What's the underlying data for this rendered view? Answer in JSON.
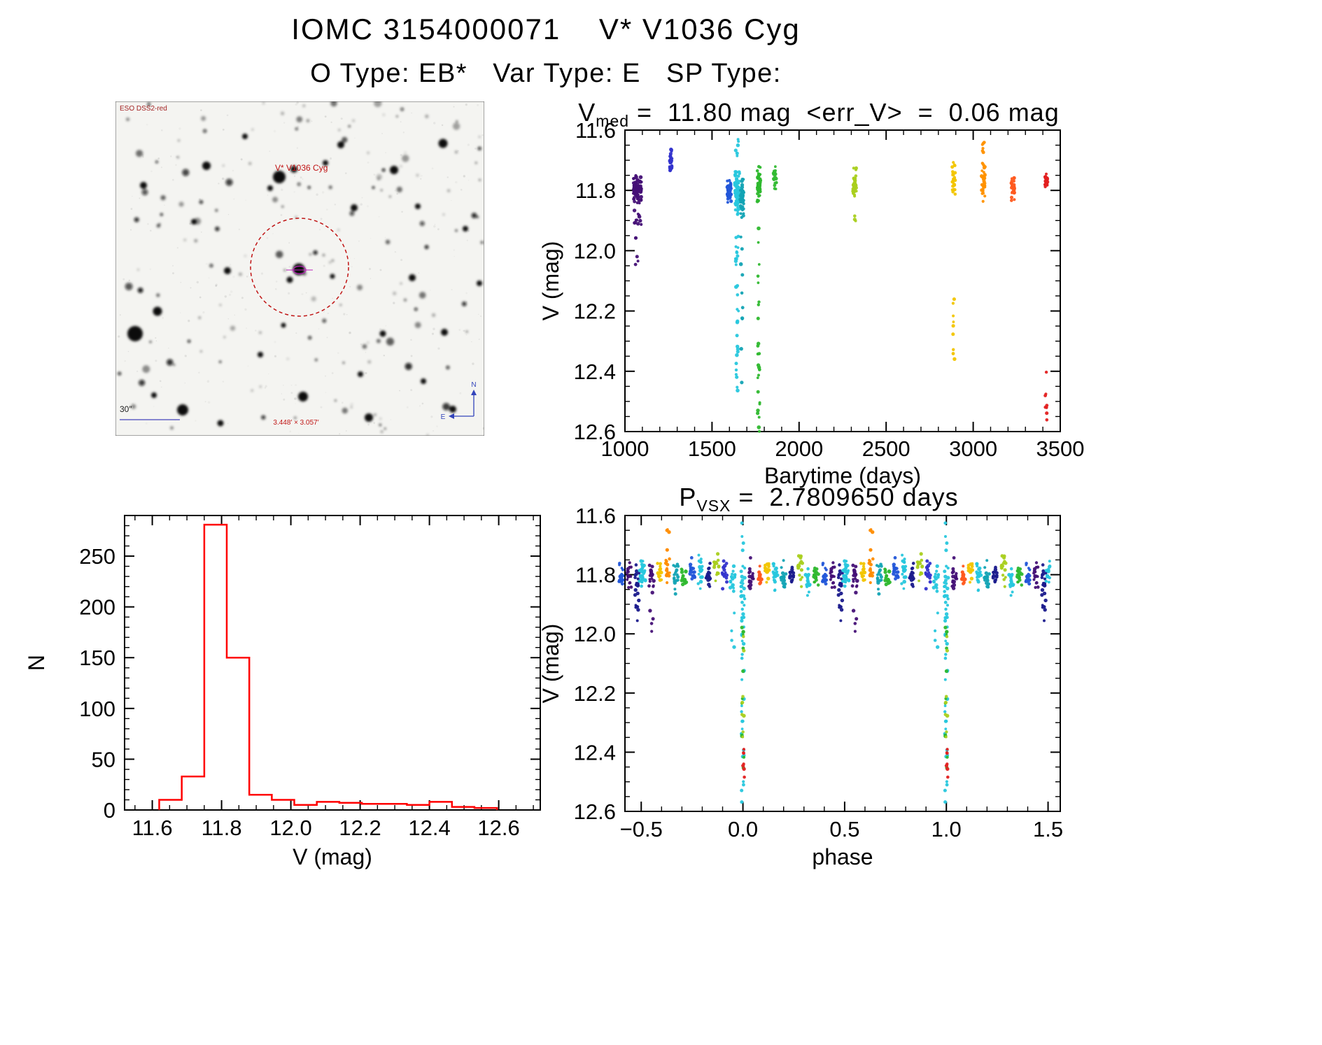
{
  "page": {
    "title": "IOMC 3154000071    V* V1036 Cyg",
    "subtitle": "O Type: EB*   Var Type: E   SP Type:"
  },
  "finder": {
    "survey_label": "ESO DSS2-red",
    "target_label": "V* V1036 Cyg",
    "scale_bar_label": "30″",
    "fov_label": "3.448′ × 3.057′",
    "compass_north": "N",
    "compass_east": "E"
  },
  "chart_data": [
    {
      "id": "lightcurve-barytime",
      "type": "scatter",
      "title_var": "V",
      "title_sub": "med",
      "title_rest": " =  11.80 mag  <err_V>  =  0.06 mag",
      "v_med_mag": "11.80",
      "err_v_mag": "0.06",
      "xlabel": "Barytime (days)",
      "ylabel": "V (mag)",
      "xlim": [
        1000,
        3500
      ],
      "ylim_top": 11.6,
      "ylim_bottom": 12.6,
      "xticks": {
        "values": [
          1000,
          1500,
          2000,
          2500,
          3000,
          3500
        ],
        "labels": [
          "1000",
          "1500",
          "2000",
          "2500",
          "3000",
          "3500"
        ],
        "minor": 100
      },
      "yticks": {
        "values": [
          11.6,
          11.8,
          12.0,
          12.2,
          12.4,
          12.6
        ],
        "labels": [
          "11.6",
          "11.8",
          "12.0",
          "12.2",
          "12.4",
          "12.6"
        ],
        "minor": 0.05
      },
      "clusters": [
        {
          "x": 1072,
          "dx": 24,
          "color": "#451076",
          "bands": [
            [
              11.8,
              0.04,
              85
            ],
            [
              11.9,
              0.03,
              10
            ]
          ],
          "tails": [
            [
              11.95,
              12.06,
              5
            ]
          ]
        },
        {
          "x": 1263,
          "dx": 7,
          "color": "#3333cc",
          "bands": [
            [
              11.7,
              0.035,
              26
            ]
          ]
        },
        {
          "x": 1598,
          "dx": 12,
          "color": "#2256d9",
          "bands": [
            [
              11.8,
              0.035,
              40
            ]
          ]
        },
        {
          "x": 1645,
          "dx": 14,
          "color": "#27c7dd",
          "bands": [
            [
              11.8,
              0.06,
              80
            ]
          ],
          "tails": [
            [
              11.92,
              12.52,
              30
            ],
            [
              11.63,
              11.7,
              6
            ]
          ]
        },
        {
          "x": 1672,
          "dx": 10,
          "color": "#12a3b4",
          "bands": [
            [
              11.82,
              0.05,
              40
            ]
          ],
          "tails": [
            [
              11.95,
              12.45,
              10
            ]
          ]
        },
        {
          "x": 1768,
          "dx": 9,
          "color": "#2eb82e",
          "bands": [
            [
              11.78,
              0.045,
              45
            ]
          ],
          "tails": [
            [
              11.9,
              12.6,
              26
            ]
          ]
        },
        {
          "x": 1862,
          "dx": 10,
          "color": "#33bb33",
          "bands": [
            [
              11.76,
              0.03,
              24
            ]
          ]
        },
        {
          "x": 2320,
          "dx": 10,
          "color": "#a9cf1e",
          "bands": [
            [
              11.78,
              0.05,
              34
            ]
          ],
          "tails": [
            [
              11.88,
              11.92,
              3
            ]
          ]
        },
        {
          "x": 2888,
          "dx": 9,
          "color": "#f2c500",
          "bands": [
            [
              11.76,
              0.04,
              26
            ]
          ],
          "tails": [
            [
              12.15,
              12.4,
              10
            ]
          ]
        },
        {
          "x": 3058,
          "dx": 10,
          "color": "#ff9100",
          "bands": [
            [
              11.76,
              0.05,
              36
            ],
            [
              11.66,
              0.02,
              5
            ]
          ]
        },
        {
          "x": 3228,
          "dx": 9,
          "color": "#ff5a1f",
          "bands": [
            [
              11.79,
              0.035,
              30
            ]
          ]
        },
        {
          "x": 3418,
          "dx": 8,
          "color": "#e32020",
          "bands": [
            [
              11.77,
              0.02,
              24
            ]
          ],
          "tails": [
            [
              12.4,
              12.58,
              9
            ]
          ]
        }
      ]
    },
    {
      "id": "v-histogram",
      "type": "histogram",
      "color": "#ff0000",
      "xlabel": "V (mag)",
      "ylabel": "N",
      "xlim": [
        11.52,
        12.72
      ],
      "ylim_top": 290,
      "ylim_bottom": 0,
      "xticks": {
        "values": [
          11.6,
          11.8,
          12.0,
          12.2,
          12.4,
          12.6
        ],
        "labels": [
          "11.6",
          "11.8",
          "12.0",
          "12.2",
          "12.4",
          "12.6"
        ],
        "minor": 0.05
      },
      "yticks": {
        "values": [
          0,
          50,
          100,
          150,
          200,
          250
        ],
        "labels": [
          "0",
          "50",
          "100",
          "150",
          "200",
          "250"
        ],
        "minor": 10
      },
      "bin_edges": [
        11.62,
        11.685,
        11.75,
        11.815,
        11.88,
        11.945,
        12.01,
        12.075,
        12.14,
        12.205,
        12.27,
        12.335,
        12.4,
        12.465,
        12.53,
        12.595
      ],
      "counts": [
        10,
        33,
        281,
        150,
        15,
        10,
        5,
        8,
        7,
        6,
        6,
        5,
        8,
        3,
        2
      ]
    },
    {
      "id": "phase-folded-lightcurve",
      "type": "scatter",
      "title_var": "P",
      "title_sub": "VSX",
      "title_rest": " =  2.7809650 days",
      "period_days": "2.7809650",
      "xlabel": "phase",
      "ylabel": "V (mag)",
      "xlim": [
        -0.58,
        1.56
      ],
      "ylim_top": 11.6,
      "ylim_bottom": 12.6,
      "mirror_period": 1.0,
      "xticks": {
        "values": [
          -0.5,
          0.0,
          0.5,
          1.0,
          1.5
        ],
        "labels": [
          "−0.5",
          "0.0",
          "0.5",
          "1.0",
          "1.5"
        ],
        "minor": 0.1
      },
      "yticks": {
        "values": [
          11.6,
          11.8,
          12.0,
          12.2,
          12.4,
          12.6
        ],
        "labels": [
          "11.6",
          "11.8",
          "12.0",
          "12.2",
          "12.4",
          "12.6"
        ],
        "minor": 0.05
      },
      "clusters": [
        {
          "x": -0.49,
          "dx": 0.012,
          "color": "#27c7dd",
          "bands": [
            [
              11.8,
              0.04,
              20
            ]
          ]
        },
        {
          "x": -0.45,
          "dx": 0.012,
          "color": "#451076",
          "bands": [
            [
              11.81,
              0.035,
              18
            ]
          ],
          "tails": [
            [
              11.92,
              12.03,
              4
            ]
          ]
        },
        {
          "x": -0.41,
          "dx": 0.012,
          "color": "#f2c500",
          "bands": [
            [
              11.79,
              0.03,
              14
            ]
          ]
        },
        {
          "x": -0.37,
          "dx": 0.01,
          "color": "#ff8c00",
          "bands": [
            [
              11.76,
              0.05,
              16
            ]
          ],
          "tails": [
            [
              11.64,
              11.68,
              3
            ]
          ]
        },
        {
          "x": -0.33,
          "dx": 0.012,
          "color": "#12a3b4",
          "bands": [
            [
              11.8,
              0.04,
              18
            ]
          ]
        },
        {
          "x": -0.29,
          "dx": 0.012,
          "color": "#2eb82e",
          "bands": [
            [
              11.82,
              0.04,
              16
            ]
          ]
        },
        {
          "x": -0.25,
          "dx": 0.012,
          "color": "#2256d9",
          "bands": [
            [
              11.79,
              0.035,
              18
            ]
          ]
        },
        {
          "x": -0.21,
          "dx": 0.012,
          "color": "#27c7dd",
          "bands": [
            [
              11.8,
              0.05,
              20
            ]
          ]
        },
        {
          "x": -0.17,
          "dx": 0.012,
          "color": "#1a1a8c",
          "bands": [
            [
              11.8,
              0.035,
              16
            ]
          ]
        },
        {
          "x": -0.13,
          "dx": 0.012,
          "color": "#a9cf1e",
          "bands": [
            [
              11.78,
              0.04,
              16
            ]
          ]
        },
        {
          "x": -0.09,
          "dx": 0.012,
          "color": "#3333cc",
          "bands": [
            [
              11.79,
              0.04,
              16
            ]
          ]
        },
        {
          "x": -0.05,
          "dx": 0.012,
          "color": "#27c7dd",
          "bands": [
            [
              11.82,
              0.05,
              18
            ]
          ],
          "tails": [
            [
              11.9,
              12.05,
              4
            ]
          ]
        },
        {
          "x": 0.0,
          "dx": 0.01,
          "color": "#27c7dd",
          "bands": [
            [
              11.84,
              0.06,
              20
            ]
          ],
          "tails": [
            [
              11.9,
              12.58,
              28
            ],
            [
              11.62,
              11.72,
              4
            ]
          ]
        },
        {
          "x": 0.0,
          "dx": 0.008,
          "color": "#2eb82e",
          "tails": [
            [
              11.95,
              12.52,
              12
            ]
          ]
        },
        {
          "x": 0.0,
          "dx": 0.008,
          "color": "#a9cf1e",
          "tails": [
            [
              12.0,
              12.35,
              8
            ]
          ]
        },
        {
          "x": 0.003,
          "dx": 0.006,
          "color": "#e32020",
          "tails": [
            [
              12.38,
              12.5,
              7
            ]
          ]
        },
        {
          "x": 0.04,
          "dx": 0.012,
          "color": "#451076",
          "bands": [
            [
              11.81,
              0.04,
              16
            ]
          ]
        },
        {
          "x": 0.08,
          "dx": 0.012,
          "color": "#ff5a1f",
          "bands": [
            [
              11.8,
              0.035,
              16
            ]
          ]
        },
        {
          "x": 0.12,
          "dx": 0.012,
          "color": "#f2c500",
          "bands": [
            [
              11.79,
              0.04,
              18
            ]
          ]
        },
        {
          "x": 0.16,
          "dx": 0.012,
          "color": "#27c7dd",
          "bands": [
            [
              11.81,
              0.05,
              20
            ]
          ]
        },
        {
          "x": 0.2,
          "dx": 0.012,
          "color": "#12a3b4",
          "bands": [
            [
              11.8,
              0.04,
              16
            ]
          ]
        },
        {
          "x": 0.24,
          "dx": 0.012,
          "color": "#1a1a8c",
          "bands": [
            [
              11.8,
              0.04,
              16
            ]
          ]
        },
        {
          "x": 0.28,
          "dx": 0.012,
          "color": "#a9cf1e",
          "bands": [
            [
              11.78,
              0.04,
              16
            ]
          ]
        },
        {
          "x": 0.32,
          "dx": 0.012,
          "color": "#27c7dd",
          "bands": [
            [
              11.82,
              0.05,
              18
            ]
          ]
        },
        {
          "x": 0.36,
          "dx": 0.012,
          "color": "#2eb82e",
          "bands": [
            [
              11.79,
              0.04,
              16
            ]
          ]
        },
        {
          "x": 0.4,
          "dx": 0.012,
          "color": "#2256d9",
          "bands": [
            [
              11.8,
              0.035,
              16
            ]
          ]
        },
        {
          "x": 0.44,
          "dx": 0.012,
          "color": "#451076",
          "bands": [
            [
              11.8,
              0.04,
              16
            ]
          ]
        },
        {
          "x": 0.48,
          "dx": 0.012,
          "color": "#1a1a8c",
          "bands": [
            [
              11.82,
              0.05,
              16
            ]
          ],
          "tails": [
            [
              11.9,
              12.02,
              6
            ]
          ]
        },
        {
          "x": 0.5,
          "dx": 0.01,
          "color": "#27c7dd",
          "bands": [
            [
              11.8,
              0.045,
              14
            ]
          ]
        }
      ]
    }
  ]
}
